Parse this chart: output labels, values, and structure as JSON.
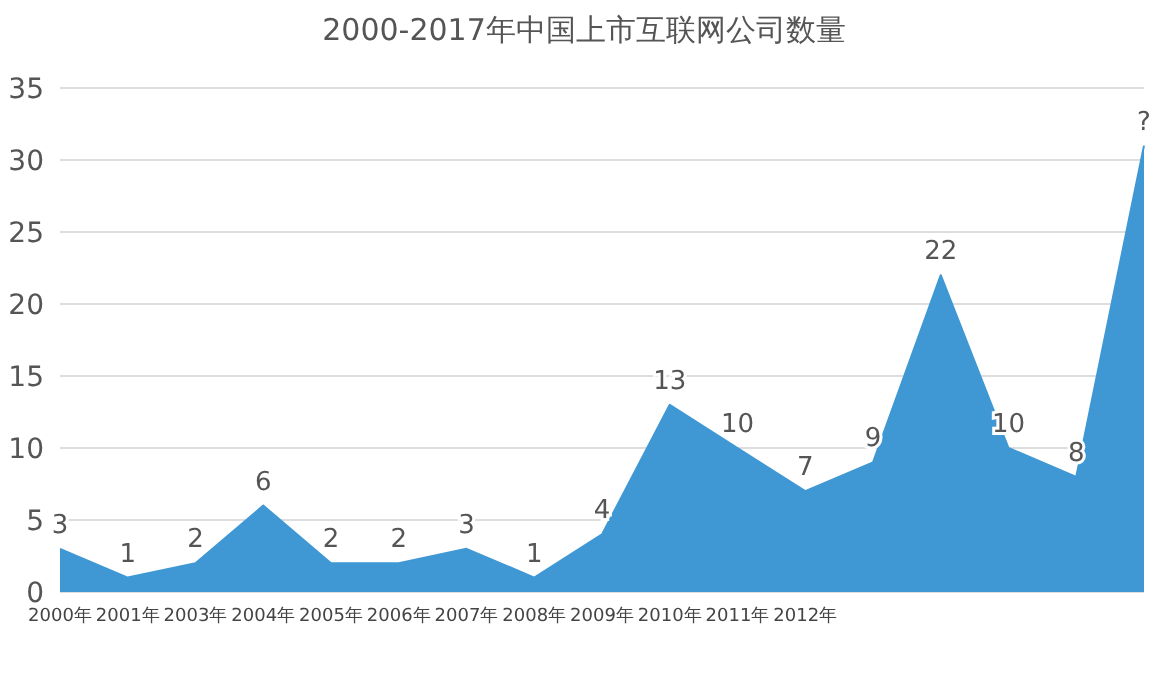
{
  "chart_data": {
    "type": "area",
    "title": "2000-2017年中国上市互联网公司数量",
    "categories": [
      "2000年",
      "2001年",
      "2003年",
      "2004年",
      "2005年",
      "2006年",
      "2007年",
      "2008年",
      "2009年",
      "2010年",
      "2011年",
      "2012年",
      null,
      null,
      null,
      null,
      null
    ],
    "series": [
      {
        "color": "#3f98d4",
        "values": [
          3,
          1,
          2,
          6,
          2,
          2,
          3,
          1,
          4,
          13,
          10,
          7,
          9,
          22,
          10,
          8,
          31
        ],
        "value_labels": [
          "3",
          "1",
          "2",
          "6",
          "2",
          "2",
          "3",
          "1",
          "4",
          "13",
          "10",
          "7",
          "9",
          "22",
          "10",
          "8",
          "?"
        ]
      }
    ],
    "ylim": [
      0,
      35
    ],
    "yticks": [
      0,
      5,
      10,
      15,
      20,
      25,
      30,
      35
    ],
    "grid": "y",
    "legend": false
  }
}
